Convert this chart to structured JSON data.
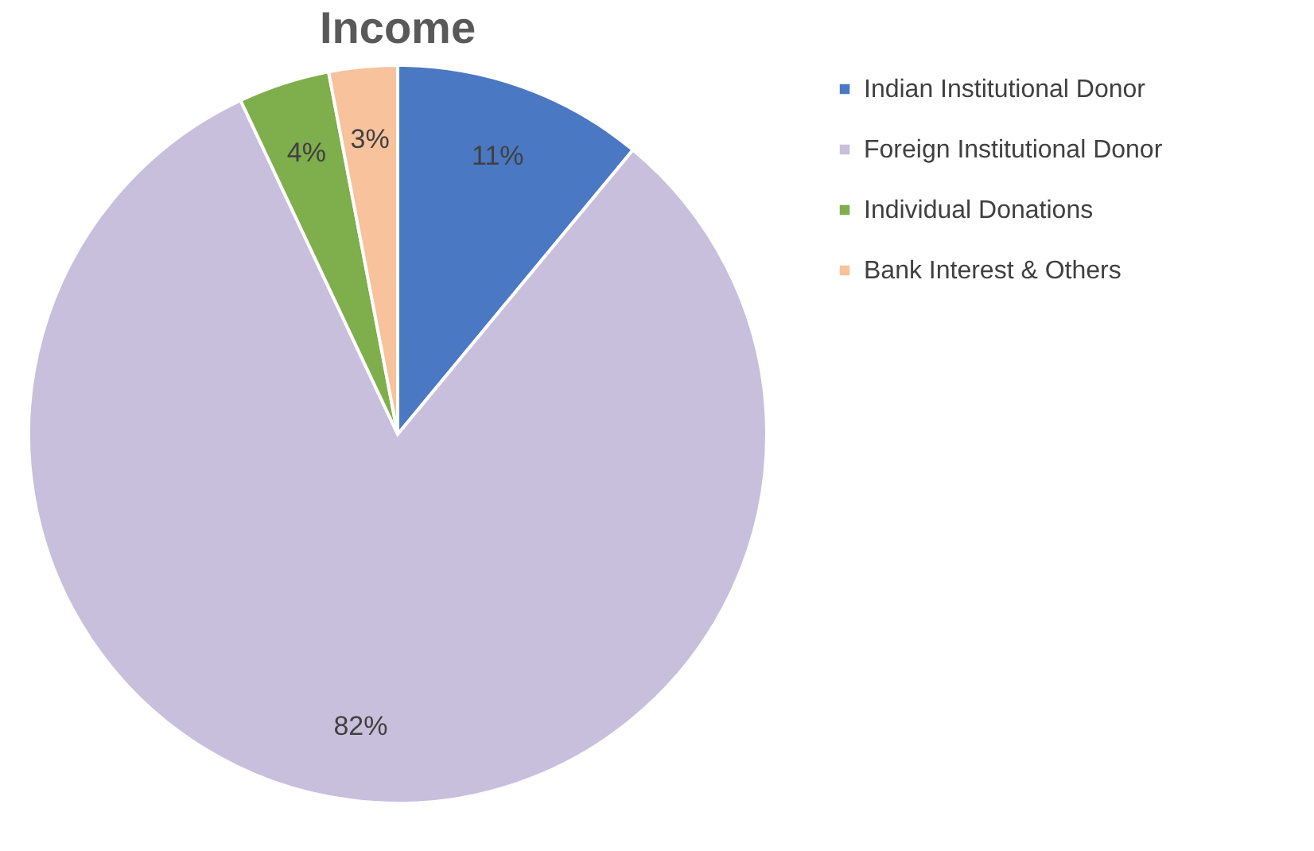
{
  "chart_data": {
    "type": "pie",
    "title": "Income",
    "categories": [
      "Indian Institutional Donor",
      "Foreign Institutional Donor",
      "Individual Donations",
      "Bank Interest & Others"
    ],
    "values": [
      11,
      82,
      4,
      3
    ],
    "colors": [
      "#4a78c2",
      "#c8bfdc",
      "#7fae4c",
      "#f7c29c"
    ],
    "value_labels": [
      "11%",
      "82%",
      "4%",
      "3%"
    ],
    "legend": "right"
  }
}
